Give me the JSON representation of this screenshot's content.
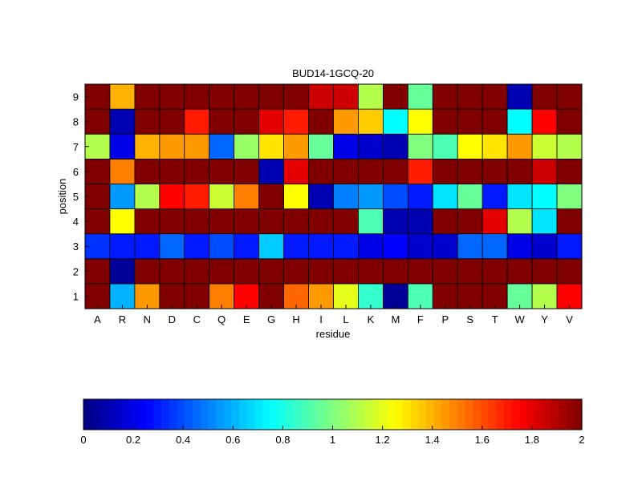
{
  "chart_data": {
    "type": "heatmap",
    "title": "BUD14-1GCQ-20",
    "xlabel": "residue",
    "ylabel": "position",
    "x_categories": [
      "A",
      "R",
      "N",
      "D",
      "C",
      "Q",
      "E",
      "G",
      "H",
      "I",
      "L",
      "K",
      "M",
      "F",
      "P",
      "S",
      "T",
      "W",
      "Y",
      "V"
    ],
    "y_categories": [
      "1",
      "2",
      "3",
      "4",
      "5",
      "6",
      "7",
      "8",
      "9"
    ],
    "values": [
      [
        2.0,
        0.6,
        1.45,
        2.0,
        2.0,
        1.5,
        1.75,
        2.0,
        1.55,
        1.45,
        1.2,
        0.85,
        0.05,
        0.9,
        2.0,
        2.0,
        2.0,
        0.95,
        1.1,
        1.75
      ],
      [
        2.0,
        0.05,
        2.0,
        2.0,
        2.0,
        2.0,
        2.0,
        2.0,
        2.0,
        2.0,
        2.0,
        2.0,
        2.0,
        2.0,
        2.0,
        2.0,
        2.0,
        2.0,
        2.0,
        2.0
      ],
      [
        0.35,
        0.3,
        0.3,
        0.45,
        0.3,
        0.4,
        0.3,
        0.65,
        0.3,
        0.3,
        0.3,
        0.2,
        0.25,
        0.15,
        0.15,
        0.45,
        0.45,
        0.2,
        0.15,
        0.3
      ],
      [
        2.0,
        1.25,
        2.0,
        2.0,
        2.0,
        2.0,
        2.0,
        2.0,
        2.0,
        2.0,
        2.0,
        0.9,
        0.1,
        0.1,
        2.0,
        2.0,
        1.8,
        1.1,
        0.7,
        2.0
      ],
      [
        2.0,
        0.55,
        1.1,
        1.75,
        1.7,
        1.15,
        1.5,
        2.0,
        1.25,
        0.1,
        0.5,
        0.55,
        0.4,
        0.3,
        0.7,
        0.95,
        0.3,
        0.7,
        0.75,
        1.0
      ],
      [
        2.0,
        1.5,
        2.0,
        2.0,
        2.0,
        2.0,
        2.0,
        0.1,
        1.8,
        2.0,
        2.0,
        2.0,
        2.0,
        1.7,
        2.0,
        2.0,
        2.0,
        2.0,
        1.85,
        2.0
      ],
      [
        1.1,
        0.2,
        1.4,
        1.45,
        1.45,
        0.45,
        1.05,
        1.3,
        1.45,
        0.95,
        0.2,
        0.15,
        0.1,
        1.0,
        0.9,
        1.25,
        1.3,
        1.45,
        1.15,
        1.1
      ],
      [
        2.0,
        0.1,
        2.0,
        2.0,
        1.7,
        2.0,
        2.0,
        1.8,
        1.7,
        2.0,
        1.45,
        1.35,
        0.75,
        1.25,
        2.0,
        2.0,
        2.0,
        0.75,
        1.75,
        2.0
      ],
      [
        2.0,
        1.4,
        2.0,
        2.0,
        2.0,
        2.0,
        2.0,
        2.0,
        2.0,
        1.85,
        1.85,
        1.1,
        2.0,
        0.95,
        2.0,
        2.0,
        2.0,
        0.1,
        2.0,
        2.0
      ]
    ],
    "colormap": "jet",
    "clim": [
      0,
      2
    ],
    "colorbar": {
      "orientation": "horizontal",
      "ticks": [
        "0",
        "0.2",
        "0.4",
        "0.6",
        "0.8",
        "1",
        "1.2",
        "1.4",
        "1.6",
        "1.8",
        "2"
      ]
    }
  }
}
